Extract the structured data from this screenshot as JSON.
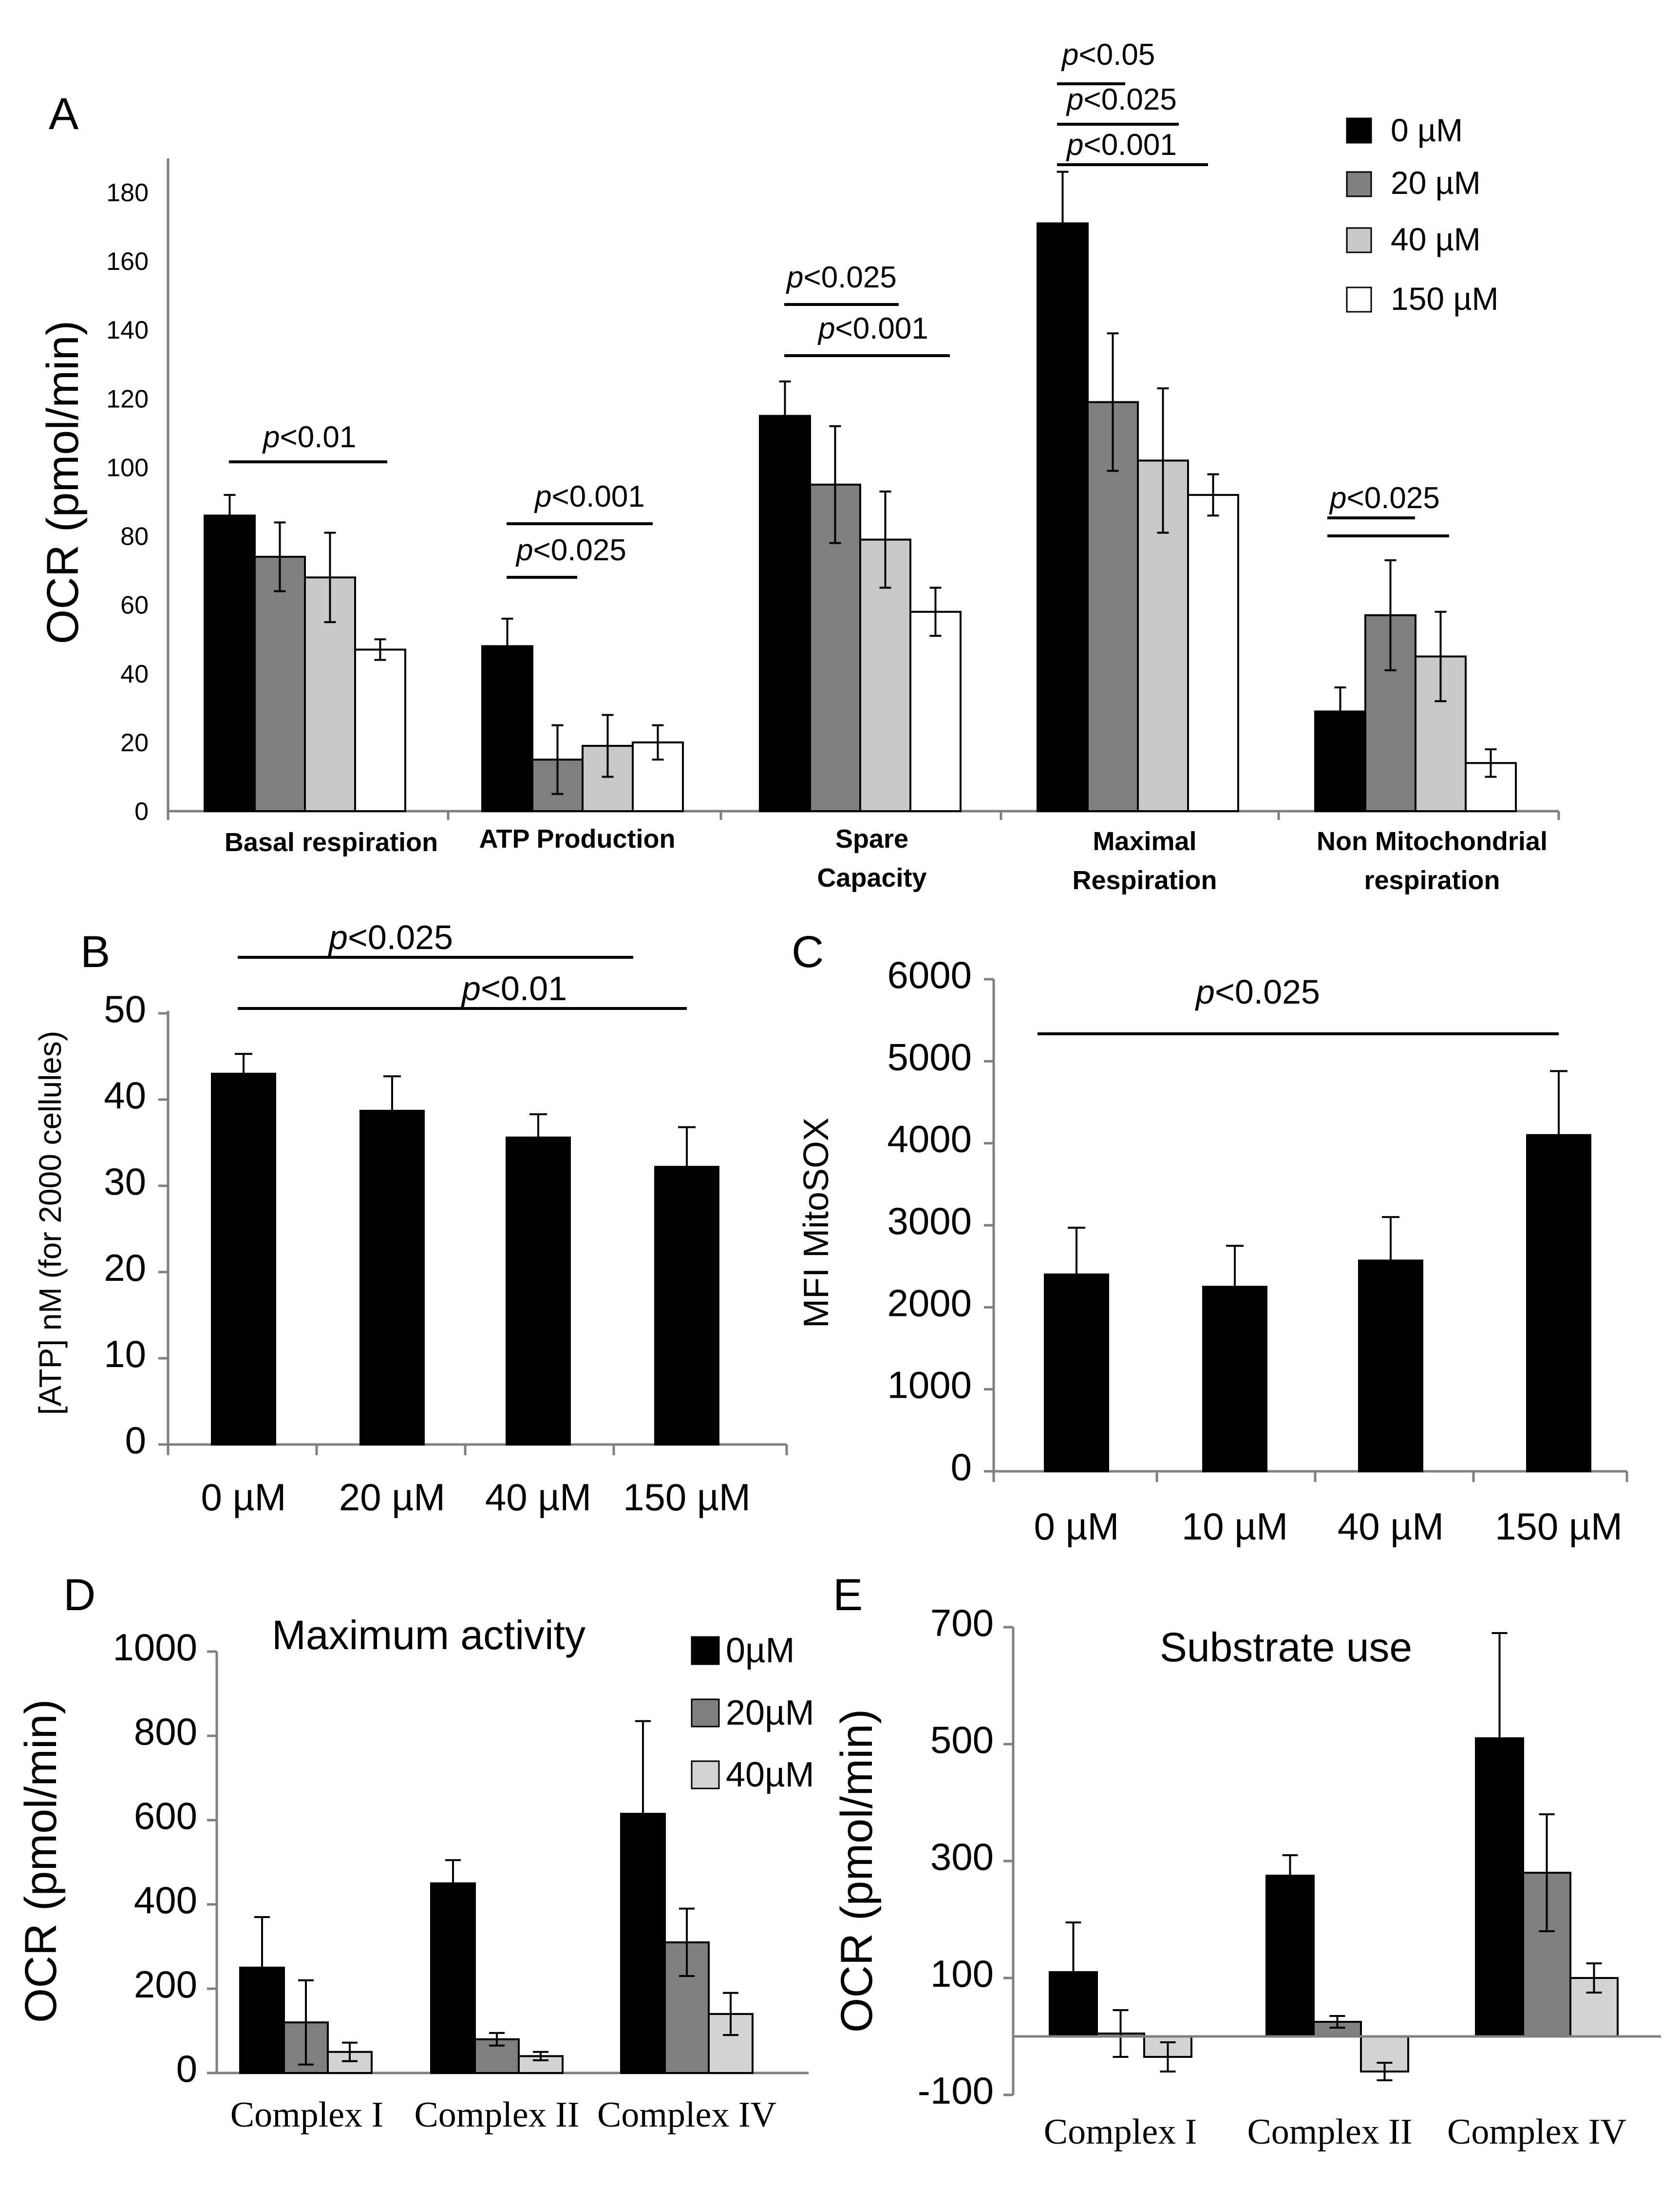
{
  "colors": {
    "c0": "#000000",
    "c20": "#7f7f7f",
    "c40": "#c8c8c8",
    "c150": "#ffffff"
  },
  "chart_data": [
    {
      "panel": "A",
      "type": "bar",
      "ylabel": "OCR (pmol/min)",
      "ylim": [
        0,
        190
      ],
      "yticks": [
        "0",
        "20",
        "40",
        "60",
        "80",
        "100",
        "120",
        "140",
        "160",
        "180"
      ],
      "categories": [
        "Basal respiration",
        "ATP Production",
        "Spare Capacity",
        "Maximal Respiration",
        "Non Mitochondrial respiration"
      ],
      "series": [
        {
          "name": "0 µM",
          "values": [
            86,
            48,
            115,
            171,
            29
          ],
          "errors": [
            6,
            8,
            10,
            15,
            7
          ]
        },
        {
          "name": "20 µM",
          "values": [
            74,
            15,
            95,
            119,
            57
          ],
          "errors": [
            10,
            10,
            17,
            20,
            16
          ]
        },
        {
          "name": "40 µM",
          "values": [
            68,
            19,
            79,
            102,
            45
          ],
          "errors": [
            13,
            9,
            14,
            21,
            13
          ]
        },
        {
          "name": "150 µM",
          "values": [
            47,
            20,
            58,
            92,
            14
          ],
          "errors": [
            3,
            5,
            7,
            6,
            4
          ]
        }
      ],
      "legend": [
        "0 µM",
        "20 µM",
        "40 µM",
        "150 µM"
      ],
      "annotations": [
        {
          "text": "p<0.01",
          "p": "p",
          "rest": "<0.01"
        },
        {
          "text": "p<0.001",
          "p": "p",
          "rest": "<0.001"
        },
        {
          "text": "p<0.025",
          "p": "p",
          "rest": "<0.025"
        },
        {
          "text": "p<0.025",
          "p": "p",
          "rest": "<0.025"
        },
        {
          "text": "p<0.001",
          "p": "p",
          "rest": "<0.001"
        },
        {
          "text": "p<0.05",
          "p": "p",
          "rest": "<0.05"
        },
        {
          "text": "p<0.025",
          "p": "p",
          "rest": "<0.025"
        },
        {
          "text": "p<0.001",
          "p": "p",
          "rest": "<0.001"
        },
        {
          "text": "p<0.025",
          "p": "p",
          "rest": "<0.025"
        }
      ]
    },
    {
      "panel": "B",
      "type": "bar",
      "ylabel": "[ATP] nM  (for 2000 cellules)",
      "ylim": [
        0,
        50
      ],
      "yticks": [
        "0",
        "10",
        "20",
        "30",
        "40",
        "50"
      ],
      "categories": [
        "0 µM",
        "20 µM",
        "40 µM",
        "150 µM"
      ],
      "values": [
        43,
        38.7,
        35.6,
        32.2
      ],
      "errors": [
        2.3,
        4,
        2.7,
        4.6
      ],
      "annotations": [
        {
          "text": "p<0.025",
          "p": "p",
          "rest": "<0.025"
        },
        {
          "text": "p<0.01",
          "p": "p",
          "rest": "<0.01"
        }
      ]
    },
    {
      "panel": "C",
      "type": "bar",
      "ylabel": "MFI MitoSOX",
      "ylim": [
        0,
        6000
      ],
      "yticks": [
        "0",
        "1000",
        "2000",
        "3000",
        "4000",
        "5000",
        "6000"
      ],
      "categories": [
        "0 µM",
        "10 µM",
        "40 µM",
        "150 µM"
      ],
      "values": [
        2400,
        2250,
        2570,
        4100
      ],
      "errors": [
        570,
        500,
        530,
        780
      ],
      "annotations": [
        {
          "text": "p<0.025",
          "p": "p",
          "rest": "<0.025"
        }
      ]
    },
    {
      "panel": "D",
      "type": "bar",
      "title": "Maximum activity",
      "ylabel": "OCR (pmol/min)",
      "ylim": [
        0,
        1000
      ],
      "yticks": [
        "0",
        "200",
        "400",
        "600",
        "800",
        "1000"
      ],
      "categories": [
        "Complex I",
        "Complex II",
        "Complex IV"
      ],
      "series": [
        {
          "name": "0µM",
          "values": [
            250,
            450,
            615
          ],
          "errors": [
            120,
            55,
            220
          ]
        },
        {
          "name": "20µM",
          "values": [
            120,
            80,
            310
          ],
          "errors": [
            100,
            15,
            80
          ]
        },
        {
          "name": "40µM",
          "values": [
            50,
            40,
            140
          ],
          "errors": [
            22,
            10,
            50
          ]
        }
      ],
      "legend": [
        "0µM",
        "20µM",
        "40µM"
      ]
    },
    {
      "panel": "E",
      "type": "bar",
      "title": "Substrate use",
      "ylabel": "OCR (pmol/min)",
      "ylim": [
        -100,
        700
      ],
      "yticks": [
        "-100",
        "100",
        "300",
        "500",
        "700"
      ],
      "categories": [
        "Complex I",
        "Complex II",
        "Complex IV"
      ],
      "series": [
        {
          "name": "0µM",
          "values": [
            110,
            275,
            510
          ],
          "errors": [
            85,
            35,
            180
          ]
        },
        {
          "name": "20µM",
          "values": [
            5,
            25,
            280
          ],
          "errors": [
            40,
            10,
            100
          ]
        },
        {
          "name": "40µM",
          "values": [
            -35,
            -60,
            100
          ],
          "errors": [
            25,
            15,
            25
          ]
        }
      ]
    }
  ]
}
